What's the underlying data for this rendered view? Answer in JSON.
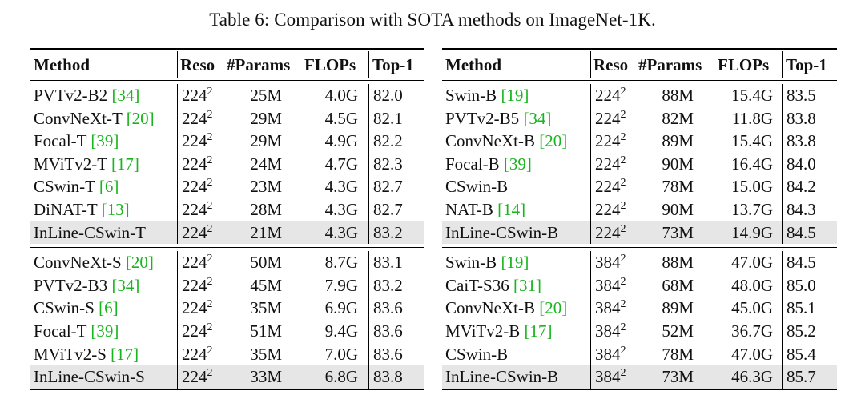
{
  "caption": "Table 6: Comparison with SOTA methods on ImageNet-1K.",
  "headers": {
    "method": "Method",
    "reso": "Reso",
    "params": "#Params",
    "flops": "FLOPs",
    "top1": "Top-1"
  },
  "left": {
    "groups": [
      {
        "rows": [
          {
            "name": "PVTv2-B2 ",
            "cite": "[34]",
            "reso": "224",
            "exp": "2",
            "params": "25M",
            "flops": "4.0G",
            "top1": "82.0",
            "hl": false
          },
          {
            "name": "ConvNeXt-T ",
            "cite": "[20]",
            "reso": "224",
            "exp": "2",
            "params": "29M",
            "flops": "4.5G",
            "top1": "82.1",
            "hl": false
          },
          {
            "name": "Focal-T ",
            "cite": "[39]",
            "reso": "224",
            "exp": "2",
            "params": "29M",
            "flops": "4.9G",
            "top1": "82.2",
            "hl": false
          },
          {
            "name": "MViTv2-T ",
            "cite": "[17]",
            "reso": "224",
            "exp": "2",
            "params": "24M",
            "flops": "4.7G",
            "top1": "82.3",
            "hl": false
          },
          {
            "name": "CSwin-T ",
            "cite": "[6]",
            "reso": "224",
            "exp": "2",
            "params": "23M",
            "flops": "4.3G",
            "top1": "82.7",
            "hl": false
          },
          {
            "name": "DiNAT-T ",
            "cite": "[13]",
            "reso": "224",
            "exp": "2",
            "params": "28M",
            "flops": "4.3G",
            "top1": "82.7",
            "hl": false
          },
          {
            "name": "InLine-CSwin-T",
            "cite": "",
            "reso": "224",
            "exp": "2",
            "params": "21M",
            "flops": "4.3G",
            "top1": "83.2",
            "hl": true
          }
        ]
      },
      {
        "rows": [
          {
            "name": "ConvNeXt-S ",
            "cite": "[20]",
            "reso": "224",
            "exp": "2",
            "params": "50M",
            "flops": "8.7G",
            "top1": "83.1",
            "hl": false
          },
          {
            "name": "PVTv2-B3 ",
            "cite": "[34]",
            "reso": "224",
            "exp": "2",
            "params": "45M",
            "flops": "7.9G",
            "top1": "83.2",
            "hl": false
          },
          {
            "name": "CSwin-S ",
            "cite": "[6]",
            "reso": "224",
            "exp": "2",
            "params": "35M",
            "flops": "6.9G",
            "top1": "83.6",
            "hl": false
          },
          {
            "name": "Focal-T ",
            "cite": "[39]",
            "reso": "224",
            "exp": "2",
            "params": "51M",
            "flops": "9.4G",
            "top1": "83.6",
            "hl": false
          },
          {
            "name": "MViTv2-S ",
            "cite": "[17]",
            "reso": "224",
            "exp": "2",
            "params": "35M",
            "flops": "7.0G",
            "top1": "83.6",
            "hl": false
          },
          {
            "name": "InLine-CSwin-S",
            "cite": "",
            "reso": "224",
            "exp": "2",
            "params": "33M",
            "flops": "6.8G",
            "top1": "83.8",
            "hl": true
          }
        ]
      }
    ]
  },
  "right": {
    "groups": [
      {
        "rows": [
          {
            "name": "Swin-B ",
            "cite": "[19]",
            "reso": "224",
            "exp": "2",
            "params": "88M",
            "flops": "15.4G",
            "top1": "83.5",
            "hl": false
          },
          {
            "name": "PVTv2-B5 ",
            "cite": "[34]",
            "reso": "224",
            "exp": "2",
            "params": "82M",
            "flops": "11.8G",
            "top1": "83.8",
            "hl": false
          },
          {
            "name": "ConvNeXt-B ",
            "cite": "[20]",
            "reso": "224",
            "exp": "2",
            "params": "89M",
            "flops": "15.4G",
            "top1": "83.8",
            "hl": false
          },
          {
            "name": "Focal-B ",
            "cite": "[39]",
            "reso": "224",
            "exp": "2",
            "params": "90M",
            "flops": "16.4G",
            "top1": "84.0",
            "hl": false
          },
          {
            "name": "CSwin-B",
            "cite": "",
            "reso": "224",
            "exp": "2",
            "params": "78M",
            "flops": "15.0G",
            "top1": "84.2",
            "hl": false
          },
          {
            "name": "NAT-B ",
            "cite": "[14]",
            "reso": "224",
            "exp": "2",
            "params": "90M",
            "flops": "13.7G",
            "top1": "84.3",
            "hl": false
          },
          {
            "name": "InLine-CSwin-B",
            "cite": "",
            "reso": "224",
            "exp": "2",
            "params": "73M",
            "flops": "14.9G",
            "top1": "84.5",
            "hl": true
          }
        ]
      },
      {
        "rows": [
          {
            "name": "Swin-B ",
            "cite": "[19]",
            "reso": "384",
            "exp": "2",
            "params": "88M",
            "flops": "47.0G",
            "top1": "84.5",
            "hl": false
          },
          {
            "name": "CaiT-S36 ",
            "cite": "[31]",
            "reso": "384",
            "exp": "2",
            "params": "68M",
            "flops": "48.0G",
            "top1": "85.0",
            "hl": false
          },
          {
            "name": "ConvNeXt-B ",
            "cite": "[20]",
            "reso": "384",
            "exp": "2",
            "params": "89M",
            "flops": "45.0G",
            "top1": "85.1",
            "hl": false
          },
          {
            "name": "MViTv2-B ",
            "cite": "[17]",
            "reso": "384",
            "exp": "2",
            "params": "52M",
            "flops": "36.7G",
            "top1": "85.2",
            "hl": false
          },
          {
            "name": "CSwin-B",
            "cite": "",
            "reso": "384",
            "exp": "2",
            "params": "78M",
            "flops": "47.0G",
            "top1": "85.4",
            "hl": false
          },
          {
            "name": "InLine-CSwin-B",
            "cite": "",
            "reso": "384",
            "exp": "2",
            "params": "73M",
            "flops": "46.3G",
            "top1": "85.7",
            "hl": true
          }
        ]
      }
    ]
  }
}
